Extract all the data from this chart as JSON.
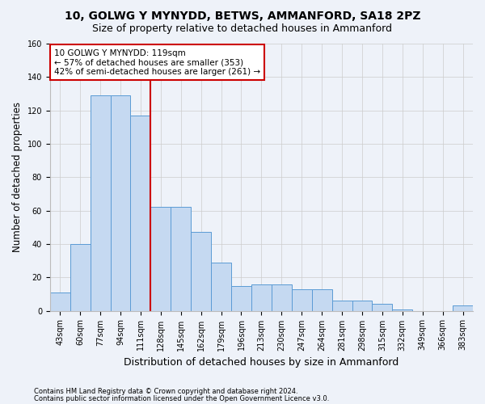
{
  "title": "10, GOLWG Y MYNYDD, BETWS, AMMANFORD, SA18 2PZ",
  "subtitle": "Size of property relative to detached houses in Ammanford",
  "xlabel": "Distribution of detached houses by size in Ammanford",
  "ylabel": "Number of detached properties",
  "footnote1": "Contains HM Land Registry data © Crown copyright and database right 2024.",
  "footnote2": "Contains public sector information licensed under the Open Government Licence v3.0.",
  "bar_labels": [
    "43sqm",
    "60sqm",
    "77sqm",
    "94sqm",
    "111sqm",
    "128sqm",
    "145sqm",
    "162sqm",
    "179sqm",
    "196sqm",
    "213sqm",
    "230sqm",
    "247sqm",
    "264sqm",
    "281sqm",
    "298sqm",
    "315sqm",
    "332sqm",
    "349sqm",
    "366sqm",
    "383sqm"
  ],
  "bar_values": [
    11,
    40,
    129,
    129,
    117,
    62,
    62,
    47,
    29,
    15,
    16,
    16,
    13,
    13,
    6,
    6,
    4,
    1,
    0,
    0,
    3
  ],
  "bar_color": "#c5d9f1",
  "bar_edge_color": "#5b9bd5",
  "vline_x": 4.5,
  "vline_color": "#cc0000",
  "annotation_title": "10 GOLWG Y MYNYDD: 119sqm",
  "annotation_line1": "← 57% of detached houses are smaller (353)",
  "annotation_line2": "42% of semi-detached houses are larger (261) →",
  "annotation_box_color": "#ffffff",
  "annotation_box_edge_color": "#cc0000",
  "ylim": [
    0,
    160
  ],
  "yticks": [
    0,
    20,
    40,
    60,
    80,
    100,
    120,
    140,
    160
  ],
  "grid_color": "#cccccc",
  "background_color": "#eef2f9",
  "title_fontsize": 10,
  "subtitle_fontsize": 9,
  "tick_fontsize": 7,
  "ylabel_fontsize": 8.5,
  "xlabel_fontsize": 9
}
